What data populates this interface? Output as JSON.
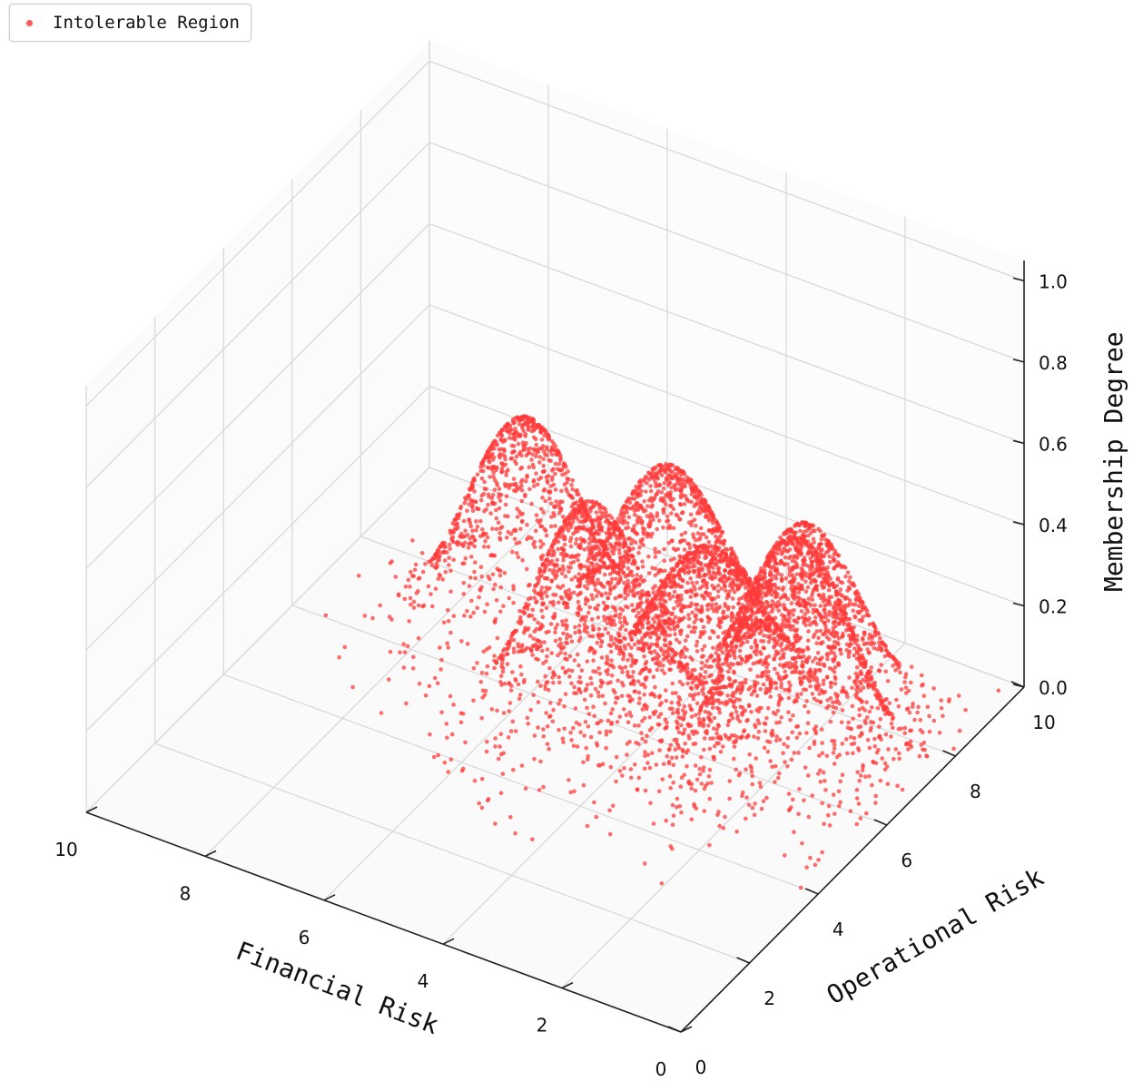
{
  "chart_data": {
    "type": "scatter",
    "legend": {
      "label": "Intolerable Region",
      "placement": "top-left"
    },
    "xlabel": "Financial Risk",
    "ylabel": "Operational Risk",
    "zlabel": "Membership Degree",
    "xlim": [
      0,
      10
    ],
    "ylim": [
      0,
      10
    ],
    "zlim": [
      0,
      1.05
    ],
    "x_ticks": [
      "0",
      "2",
      "4",
      "6",
      "8",
      "10"
    ],
    "y_ticks": [
      "0",
      "2",
      "4",
      "6",
      "8",
      "10"
    ],
    "z_ticks": [
      "0.0",
      "0.2",
      "0.4",
      "0.6",
      "0.8",
      "1.0"
    ],
    "grid": true,
    "projection": "3d",
    "marker_color": "#ff3b3b",
    "series": [
      {
        "name": "Intolerable Region",
        "peaks": [
          {
            "financial": 6.8,
            "operational": 7.2,
            "membership": 0.53
          },
          {
            "financial": 4.8,
            "operational": 7.9,
            "membership": 0.46
          },
          {
            "financial": 4.7,
            "operational": 5.5,
            "membership": 0.58
          },
          {
            "financial": 3.6,
            "operational": 7.0,
            "membership": 0.4
          },
          {
            "financial": 2.2,
            "operational": 7.4,
            "membership": 0.5
          },
          {
            "financial": 1.6,
            "operational": 6.1,
            "membership": 0.61
          }
        ],
        "points_per_peak": 1000,
        "spread": 0.85
      }
    ]
  }
}
